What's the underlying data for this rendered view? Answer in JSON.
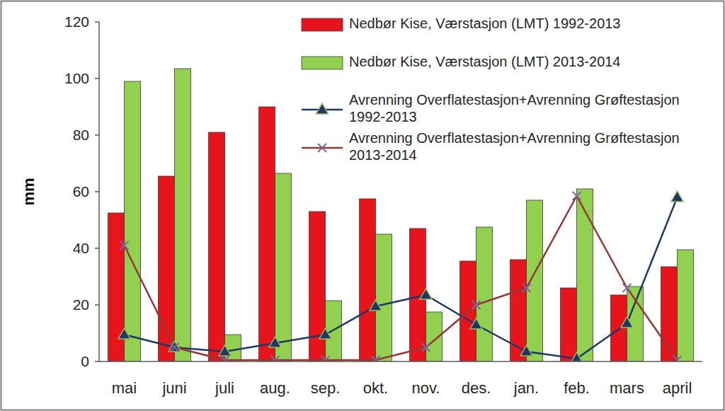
{
  "chart_data": {
    "type": "bar",
    "y_label": "mm",
    "categories": [
      "mai",
      "juni",
      "juli",
      "aug.",
      "sep.",
      "okt.",
      "nov.",
      "des.",
      "jan.",
      "feb.",
      "mars",
      "april"
    ],
    "series": [
      {
        "name": "Nedbør Kise, Værstasjon (LMT) 1992-2013",
        "type": "bar",
        "color": "#e8141c",
        "values": [
          52.5,
          65.5,
          81,
          90,
          53,
          57.5,
          47,
          35.5,
          36,
          26,
          23.5,
          33.5
        ]
      },
      {
        "name": "Nedbør Kise, Værstasjon (LMT) 2013-2014",
        "type": "bar",
        "color": "#92d050",
        "values": [
          99,
          103.5,
          9.5,
          66.5,
          21.5,
          45,
          17.5,
          47.5,
          57,
          61,
          26.5,
          39.5
        ]
      },
      {
        "name": "Avrenning Overflatestasjon+Avrenning Grøftestasjon 1992-2013",
        "type": "line",
        "color": "#1f3864",
        "marker": "triangle",
        "values": [
          9.5,
          5,
          3.5,
          6.5,
          9.5,
          19.5,
          23.5,
          13,
          3.5,
          1,
          13.5,
          58
        ]
      },
      {
        "name": "Avrenning Overflatestasjon+Avrenning Grøftestasjon 2013-2014",
        "type": "line",
        "color": "#953735",
        "marker": "x",
        "values": [
          41,
          5,
          0.5,
          0.5,
          0.5,
          0.5,
          5,
          20,
          26,
          58.5,
          26,
          0.5
        ]
      }
    ],
    "ylim": [
      0,
      120
    ],
    "yticks": [
      0,
      20,
      40,
      60,
      80,
      100,
      120
    ],
    "grid": false,
    "legend": "top-right"
  }
}
